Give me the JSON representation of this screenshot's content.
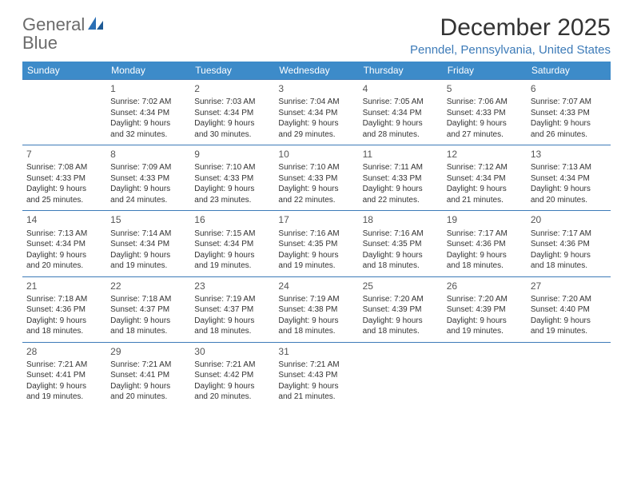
{
  "brand": {
    "part1": "General",
    "part2": "Blue"
  },
  "title": "December 2025",
  "location": "Penndel, Pennsylvania, United States",
  "colors": {
    "header_bg": "#3d8bc9",
    "header_text": "#ffffff",
    "row_border": "#3d7bb8",
    "location_color": "#3d7bb8",
    "body_text": "#333333",
    "logo_gray": "#6b6b6b",
    "logo_blue": "#2a6fb5"
  },
  "dayNames": [
    "Sunday",
    "Monday",
    "Tuesday",
    "Wednesday",
    "Thursday",
    "Friday",
    "Saturday"
  ],
  "weeks": [
    [
      null,
      {
        "n": "1",
        "sr": "Sunrise: 7:02 AM",
        "ss": "Sunset: 4:34 PM",
        "d1": "Daylight: 9 hours",
        "d2": "and 32 minutes."
      },
      {
        "n": "2",
        "sr": "Sunrise: 7:03 AM",
        "ss": "Sunset: 4:34 PM",
        "d1": "Daylight: 9 hours",
        "d2": "and 30 minutes."
      },
      {
        "n": "3",
        "sr": "Sunrise: 7:04 AM",
        "ss": "Sunset: 4:34 PM",
        "d1": "Daylight: 9 hours",
        "d2": "and 29 minutes."
      },
      {
        "n": "4",
        "sr": "Sunrise: 7:05 AM",
        "ss": "Sunset: 4:34 PM",
        "d1": "Daylight: 9 hours",
        "d2": "and 28 minutes."
      },
      {
        "n": "5",
        "sr": "Sunrise: 7:06 AM",
        "ss": "Sunset: 4:33 PM",
        "d1": "Daylight: 9 hours",
        "d2": "and 27 minutes."
      },
      {
        "n": "6",
        "sr": "Sunrise: 7:07 AM",
        "ss": "Sunset: 4:33 PM",
        "d1": "Daylight: 9 hours",
        "d2": "and 26 minutes."
      }
    ],
    [
      {
        "n": "7",
        "sr": "Sunrise: 7:08 AM",
        "ss": "Sunset: 4:33 PM",
        "d1": "Daylight: 9 hours",
        "d2": "and 25 minutes."
      },
      {
        "n": "8",
        "sr": "Sunrise: 7:09 AM",
        "ss": "Sunset: 4:33 PM",
        "d1": "Daylight: 9 hours",
        "d2": "and 24 minutes."
      },
      {
        "n": "9",
        "sr": "Sunrise: 7:10 AM",
        "ss": "Sunset: 4:33 PM",
        "d1": "Daylight: 9 hours",
        "d2": "and 23 minutes."
      },
      {
        "n": "10",
        "sr": "Sunrise: 7:10 AM",
        "ss": "Sunset: 4:33 PM",
        "d1": "Daylight: 9 hours",
        "d2": "and 22 minutes."
      },
      {
        "n": "11",
        "sr": "Sunrise: 7:11 AM",
        "ss": "Sunset: 4:33 PM",
        "d1": "Daylight: 9 hours",
        "d2": "and 22 minutes."
      },
      {
        "n": "12",
        "sr": "Sunrise: 7:12 AM",
        "ss": "Sunset: 4:34 PM",
        "d1": "Daylight: 9 hours",
        "d2": "and 21 minutes."
      },
      {
        "n": "13",
        "sr": "Sunrise: 7:13 AM",
        "ss": "Sunset: 4:34 PM",
        "d1": "Daylight: 9 hours",
        "d2": "and 20 minutes."
      }
    ],
    [
      {
        "n": "14",
        "sr": "Sunrise: 7:13 AM",
        "ss": "Sunset: 4:34 PM",
        "d1": "Daylight: 9 hours",
        "d2": "and 20 minutes."
      },
      {
        "n": "15",
        "sr": "Sunrise: 7:14 AM",
        "ss": "Sunset: 4:34 PM",
        "d1": "Daylight: 9 hours",
        "d2": "and 19 minutes."
      },
      {
        "n": "16",
        "sr": "Sunrise: 7:15 AM",
        "ss": "Sunset: 4:34 PM",
        "d1": "Daylight: 9 hours",
        "d2": "and 19 minutes."
      },
      {
        "n": "17",
        "sr": "Sunrise: 7:16 AM",
        "ss": "Sunset: 4:35 PM",
        "d1": "Daylight: 9 hours",
        "d2": "and 19 minutes."
      },
      {
        "n": "18",
        "sr": "Sunrise: 7:16 AM",
        "ss": "Sunset: 4:35 PM",
        "d1": "Daylight: 9 hours",
        "d2": "and 18 minutes."
      },
      {
        "n": "19",
        "sr": "Sunrise: 7:17 AM",
        "ss": "Sunset: 4:36 PM",
        "d1": "Daylight: 9 hours",
        "d2": "and 18 minutes."
      },
      {
        "n": "20",
        "sr": "Sunrise: 7:17 AM",
        "ss": "Sunset: 4:36 PM",
        "d1": "Daylight: 9 hours",
        "d2": "and 18 minutes."
      }
    ],
    [
      {
        "n": "21",
        "sr": "Sunrise: 7:18 AM",
        "ss": "Sunset: 4:36 PM",
        "d1": "Daylight: 9 hours",
        "d2": "and 18 minutes."
      },
      {
        "n": "22",
        "sr": "Sunrise: 7:18 AM",
        "ss": "Sunset: 4:37 PM",
        "d1": "Daylight: 9 hours",
        "d2": "and 18 minutes."
      },
      {
        "n": "23",
        "sr": "Sunrise: 7:19 AM",
        "ss": "Sunset: 4:37 PM",
        "d1": "Daylight: 9 hours",
        "d2": "and 18 minutes."
      },
      {
        "n": "24",
        "sr": "Sunrise: 7:19 AM",
        "ss": "Sunset: 4:38 PM",
        "d1": "Daylight: 9 hours",
        "d2": "and 18 minutes."
      },
      {
        "n": "25",
        "sr": "Sunrise: 7:20 AM",
        "ss": "Sunset: 4:39 PM",
        "d1": "Daylight: 9 hours",
        "d2": "and 18 minutes."
      },
      {
        "n": "26",
        "sr": "Sunrise: 7:20 AM",
        "ss": "Sunset: 4:39 PM",
        "d1": "Daylight: 9 hours",
        "d2": "and 19 minutes."
      },
      {
        "n": "27",
        "sr": "Sunrise: 7:20 AM",
        "ss": "Sunset: 4:40 PM",
        "d1": "Daylight: 9 hours",
        "d2": "and 19 minutes."
      }
    ],
    [
      {
        "n": "28",
        "sr": "Sunrise: 7:21 AM",
        "ss": "Sunset: 4:41 PM",
        "d1": "Daylight: 9 hours",
        "d2": "and 19 minutes."
      },
      {
        "n": "29",
        "sr": "Sunrise: 7:21 AM",
        "ss": "Sunset: 4:41 PM",
        "d1": "Daylight: 9 hours",
        "d2": "and 20 minutes."
      },
      {
        "n": "30",
        "sr": "Sunrise: 7:21 AM",
        "ss": "Sunset: 4:42 PM",
        "d1": "Daylight: 9 hours",
        "d2": "and 20 minutes."
      },
      {
        "n": "31",
        "sr": "Sunrise: 7:21 AM",
        "ss": "Sunset: 4:43 PM",
        "d1": "Daylight: 9 hours",
        "d2": "and 21 minutes."
      },
      null,
      null,
      null
    ]
  ]
}
